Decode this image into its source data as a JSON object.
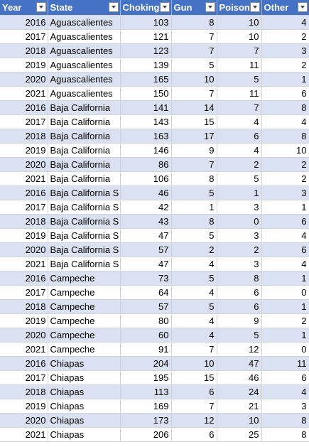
{
  "header": {
    "columns": [
      {
        "key": "year",
        "label": "Year"
      },
      {
        "key": "state",
        "label": "State"
      },
      {
        "key": "choking",
        "label": "Choking"
      },
      {
        "key": "gun",
        "label": "Gun"
      },
      {
        "key": "poison",
        "label": "Poison"
      },
      {
        "key": "other",
        "label": "Other"
      }
    ]
  },
  "colors": {
    "header_bg": "#4472c4",
    "band_row": "#d9e1f2",
    "plain_row": "#ffffff"
  },
  "icons": {
    "filter": "filter-dropdown-icon"
  },
  "rows": [
    {
      "year": "2016",
      "state": "Aguascalientes",
      "choking": "103",
      "gun": "8",
      "poison": "10",
      "other": "4"
    },
    {
      "year": "2017",
      "state": "Aguascalientes",
      "choking": "121",
      "gun": "7",
      "poison": "10",
      "other": "2"
    },
    {
      "year": "2018",
      "state": "Aguascalientes",
      "choking": "123",
      "gun": "7",
      "poison": "7",
      "other": "3"
    },
    {
      "year": "2019",
      "state": "Aguascalientes",
      "choking": "139",
      "gun": "5",
      "poison": "11",
      "other": "2"
    },
    {
      "year": "2020",
      "state": "Aguascalientes",
      "choking": "165",
      "gun": "10",
      "poison": "5",
      "other": "1"
    },
    {
      "year": "2021",
      "state": "Aguascalientes",
      "choking": "150",
      "gun": "7",
      "poison": "11",
      "other": "6"
    },
    {
      "year": "2016",
      "state": "Baja California",
      "choking": "141",
      "gun": "14",
      "poison": "7",
      "other": "8"
    },
    {
      "year": "2017",
      "state": "Baja California",
      "choking": "143",
      "gun": "15",
      "poison": "4",
      "other": "4"
    },
    {
      "year": "2018",
      "state": "Baja California",
      "choking": "163",
      "gun": "17",
      "poison": "6",
      "other": "8"
    },
    {
      "year": "2019",
      "state": "Baja California",
      "choking": "146",
      "gun": "9",
      "poison": "4",
      "other": "10"
    },
    {
      "year": "2020",
      "state": "Baja California",
      "choking": "86",
      "gun": "7",
      "poison": "2",
      "other": "2"
    },
    {
      "year": "2021",
      "state": "Baja California",
      "choking": "106",
      "gun": "8",
      "poison": "5",
      "other": "2"
    },
    {
      "year": "2016",
      "state": "Baja California S",
      "choking": "46",
      "gun": "5",
      "poison": "1",
      "other": "3"
    },
    {
      "year": "2017",
      "state": "Baja California S",
      "choking": "42",
      "gun": "1",
      "poison": "3",
      "other": "1"
    },
    {
      "year": "2018",
      "state": "Baja California S",
      "choking": "43",
      "gun": "8",
      "poison": "0",
      "other": "6"
    },
    {
      "year": "2019",
      "state": "Baja California S",
      "choking": "47",
      "gun": "5",
      "poison": "3",
      "other": "4"
    },
    {
      "year": "2020",
      "state": "Baja California S",
      "choking": "57",
      "gun": "2",
      "poison": "2",
      "other": "6"
    },
    {
      "year": "2021",
      "state": "Baja California S",
      "choking": "47",
      "gun": "4",
      "poison": "3",
      "other": "4"
    },
    {
      "year": "2016",
      "state": "Campeche",
      "choking": "73",
      "gun": "5",
      "poison": "8",
      "other": "1"
    },
    {
      "year": "2017",
      "state": "Campeche",
      "choking": "64",
      "gun": "4",
      "poison": "6",
      "other": "0"
    },
    {
      "year": "2018",
      "state": "Campeche",
      "choking": "57",
      "gun": "5",
      "poison": "6",
      "other": "1"
    },
    {
      "year": "2019",
      "state": "Campeche",
      "choking": "80",
      "gun": "4",
      "poison": "9",
      "other": "2"
    },
    {
      "year": "2020",
      "state": "Campeche",
      "choking": "60",
      "gun": "4",
      "poison": "5",
      "other": "1"
    },
    {
      "year": "2021",
      "state": "Campeche",
      "choking": "91",
      "gun": "7",
      "poison": "12",
      "other": "0"
    },
    {
      "year": "2016",
      "state": "Chiapas",
      "choking": "204",
      "gun": "10",
      "poison": "47",
      "other": "11"
    },
    {
      "year": "2017",
      "state": "Chiapas",
      "choking": "195",
      "gun": "15",
      "poison": "46",
      "other": "6"
    },
    {
      "year": "2018",
      "state": "Chiapas",
      "choking": "113",
      "gun": "6",
      "poison": "24",
      "other": "4"
    },
    {
      "year": "2019",
      "state": "Chiapas",
      "choking": "169",
      "gun": "7",
      "poison": "21",
      "other": "3"
    },
    {
      "year": "2020",
      "state": "Chiapas",
      "choking": "173",
      "gun": "12",
      "poison": "10",
      "other": "8"
    },
    {
      "year": "2021",
      "state": "Chiapas",
      "choking": "206",
      "gun": "6",
      "poison": "25",
      "other": "8"
    }
  ]
}
